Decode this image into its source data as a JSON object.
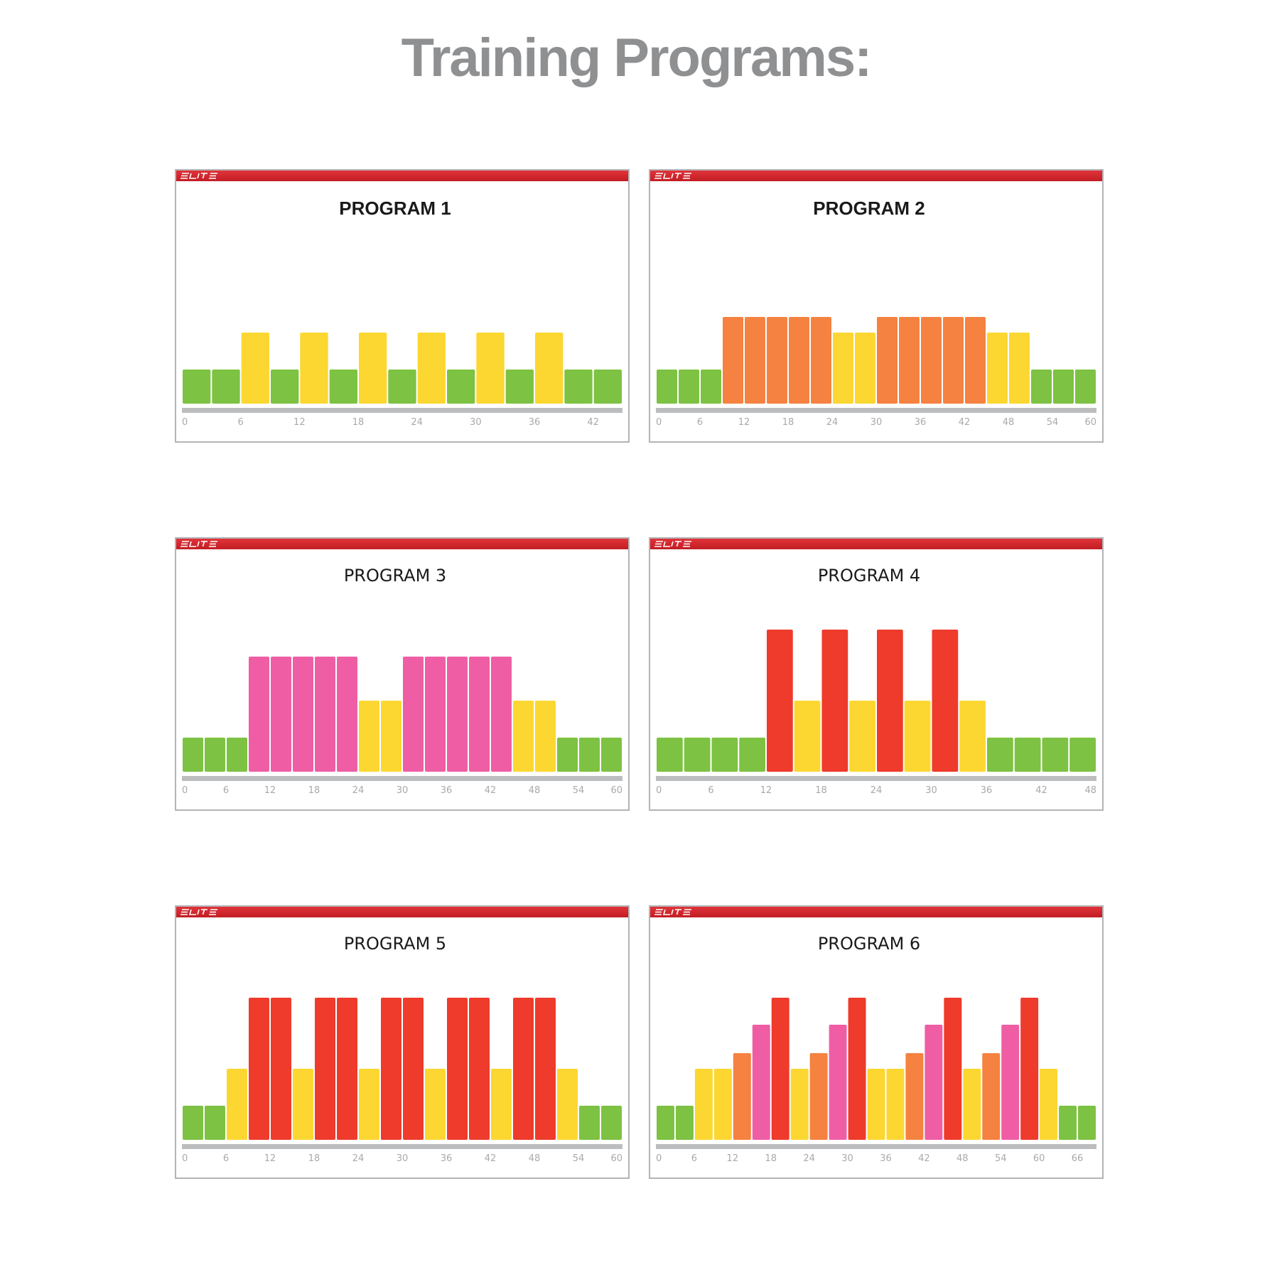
{
  "page": {
    "title": "Training Programs:"
  },
  "colors": {
    "green": "#7dc242",
    "yellow": "#fcd732",
    "orange": "#f58240",
    "pink": "#ef5ea4",
    "red": "#ee3b2b",
    "brand_red": "#d4262d",
    "track_gray": "#bcbdbf",
    "tick_gray": "#a8a9ab"
  },
  "brand": {
    "logo": "elite-logo-icon"
  },
  "chart_data": [
    {
      "type": "bar",
      "title": "PROGRAM 1",
      "xlim": [
        0,
        45
      ],
      "xticks": [
        0,
        6,
        12,
        18,
        24,
        30,
        36,
        42
      ],
      "bars": [
        {
          "start": 0,
          "end": 3,
          "level": 1,
          "zone": "green"
        },
        {
          "start": 3,
          "end": 6,
          "level": 1,
          "zone": "green"
        },
        {
          "start": 6,
          "end": 9,
          "level": 2,
          "zone": "yellow"
        },
        {
          "start": 9,
          "end": 12,
          "level": 1,
          "zone": "green"
        },
        {
          "start": 12,
          "end": 15,
          "level": 2,
          "zone": "yellow"
        },
        {
          "start": 15,
          "end": 18,
          "level": 1,
          "zone": "green"
        },
        {
          "start": 18,
          "end": 21,
          "level": 2,
          "zone": "yellow"
        },
        {
          "start": 21,
          "end": 24,
          "level": 1,
          "zone": "green"
        },
        {
          "start": 24,
          "end": 27,
          "level": 2,
          "zone": "yellow"
        },
        {
          "start": 27,
          "end": 30,
          "level": 1,
          "zone": "green"
        },
        {
          "start": 30,
          "end": 33,
          "level": 2,
          "zone": "yellow"
        },
        {
          "start": 33,
          "end": 36,
          "level": 1,
          "zone": "green"
        },
        {
          "start": 36,
          "end": 39,
          "level": 2,
          "zone": "yellow"
        },
        {
          "start": 39,
          "end": 42,
          "level": 1,
          "zone": "green"
        },
        {
          "start": 42,
          "end": 45,
          "level": 1,
          "zone": "green"
        }
      ]
    },
    {
      "type": "bar",
      "title": "PROGRAM 2",
      "xlim": [
        0,
        60
      ],
      "xticks": [
        0,
        6,
        12,
        18,
        24,
        30,
        36,
        42,
        48,
        54,
        60
      ],
      "bars": [
        {
          "start": 0,
          "end": 3,
          "level": 1,
          "zone": "green"
        },
        {
          "start": 3,
          "end": 6,
          "level": 1,
          "zone": "green"
        },
        {
          "start": 6,
          "end": 9,
          "level": 1,
          "zone": "green"
        },
        {
          "start": 9,
          "end": 12,
          "level": 3,
          "zone": "orange"
        },
        {
          "start": 12,
          "end": 15,
          "level": 3,
          "zone": "orange"
        },
        {
          "start": 15,
          "end": 18,
          "level": 3,
          "zone": "orange"
        },
        {
          "start": 18,
          "end": 21,
          "level": 3,
          "zone": "orange"
        },
        {
          "start": 21,
          "end": 24,
          "level": 3,
          "zone": "orange"
        },
        {
          "start": 24,
          "end": 27,
          "level": 2,
          "zone": "yellow"
        },
        {
          "start": 27,
          "end": 30,
          "level": 2,
          "zone": "yellow"
        },
        {
          "start": 30,
          "end": 33,
          "level": 3,
          "zone": "orange"
        },
        {
          "start": 33,
          "end": 36,
          "level": 3,
          "zone": "orange"
        },
        {
          "start": 36,
          "end": 39,
          "level": 3,
          "zone": "orange"
        },
        {
          "start": 39,
          "end": 42,
          "level": 3,
          "zone": "orange"
        },
        {
          "start": 42,
          "end": 45,
          "level": 3,
          "zone": "orange"
        },
        {
          "start": 45,
          "end": 48,
          "level": 2,
          "zone": "yellow"
        },
        {
          "start": 48,
          "end": 51,
          "level": 2,
          "zone": "yellow"
        },
        {
          "start": 51,
          "end": 54,
          "level": 1,
          "zone": "green"
        },
        {
          "start": 54,
          "end": 57,
          "level": 1,
          "zone": "green"
        },
        {
          "start": 57,
          "end": 60,
          "level": 1,
          "zone": "green"
        }
      ]
    },
    {
      "type": "bar",
      "title": "PROGRAM 3",
      "xlim": [
        0,
        60
      ],
      "xticks": [
        0,
        6,
        12,
        18,
        24,
        30,
        36,
        42,
        48,
        54,
        60
      ],
      "bars": [
        {
          "start": 0,
          "end": 3,
          "level": 1,
          "zone": "green"
        },
        {
          "start": 3,
          "end": 6,
          "level": 1,
          "zone": "green"
        },
        {
          "start": 6,
          "end": 9,
          "level": 1,
          "zone": "green"
        },
        {
          "start": 9,
          "end": 12,
          "level": 4,
          "zone": "pink"
        },
        {
          "start": 12,
          "end": 15,
          "level": 4,
          "zone": "pink"
        },
        {
          "start": 15,
          "end": 18,
          "level": 4,
          "zone": "pink"
        },
        {
          "start": 18,
          "end": 21,
          "level": 4,
          "zone": "pink"
        },
        {
          "start": 21,
          "end": 24,
          "level": 4,
          "zone": "pink"
        },
        {
          "start": 24,
          "end": 27,
          "level": 2,
          "zone": "yellow"
        },
        {
          "start": 27,
          "end": 30,
          "level": 2,
          "zone": "yellow"
        },
        {
          "start": 30,
          "end": 33,
          "level": 4,
          "zone": "pink"
        },
        {
          "start": 33,
          "end": 36,
          "level": 4,
          "zone": "pink"
        },
        {
          "start": 36,
          "end": 39,
          "level": 4,
          "zone": "pink"
        },
        {
          "start": 39,
          "end": 42,
          "level": 4,
          "zone": "pink"
        },
        {
          "start": 42,
          "end": 45,
          "level": 4,
          "zone": "pink"
        },
        {
          "start": 45,
          "end": 48,
          "level": 2,
          "zone": "yellow"
        },
        {
          "start": 48,
          "end": 51,
          "level": 2,
          "zone": "yellow"
        },
        {
          "start": 51,
          "end": 54,
          "level": 1,
          "zone": "green"
        },
        {
          "start": 54,
          "end": 57,
          "level": 1,
          "zone": "green"
        },
        {
          "start": 57,
          "end": 60,
          "level": 1,
          "zone": "green"
        }
      ]
    },
    {
      "type": "bar",
      "title": "PROGRAM 4",
      "xlim": [
        0,
        48
      ],
      "xticks": [
        0,
        6,
        12,
        18,
        24,
        30,
        36,
        42,
        48
      ],
      "bars": [
        {
          "start": 0,
          "end": 3,
          "level": 1,
          "zone": "green"
        },
        {
          "start": 3,
          "end": 6,
          "level": 1,
          "zone": "green"
        },
        {
          "start": 6,
          "end": 9,
          "level": 1,
          "zone": "green"
        },
        {
          "start": 9,
          "end": 12,
          "level": 1,
          "zone": "green"
        },
        {
          "start": 12,
          "end": 15,
          "level": 5,
          "zone": "red"
        },
        {
          "start": 15,
          "end": 18,
          "level": 2,
          "zone": "yellow"
        },
        {
          "start": 18,
          "end": 21,
          "level": 5,
          "zone": "red"
        },
        {
          "start": 21,
          "end": 24,
          "level": 2,
          "zone": "yellow"
        },
        {
          "start": 24,
          "end": 27,
          "level": 5,
          "zone": "red"
        },
        {
          "start": 27,
          "end": 30,
          "level": 2,
          "zone": "yellow"
        },
        {
          "start": 30,
          "end": 33,
          "level": 5,
          "zone": "red"
        },
        {
          "start": 33,
          "end": 36,
          "level": 2,
          "zone": "yellow"
        },
        {
          "start": 36,
          "end": 39,
          "level": 1,
          "zone": "green"
        },
        {
          "start": 39,
          "end": 42,
          "level": 1,
          "zone": "green"
        },
        {
          "start": 42,
          "end": 45,
          "level": 1,
          "zone": "green"
        },
        {
          "start": 45,
          "end": 48,
          "level": 1,
          "zone": "green"
        }
      ]
    },
    {
      "type": "bar",
      "title": "PROGRAM 5",
      "xlim": [
        0,
        60
      ],
      "xticks": [
        0,
        6,
        12,
        18,
        24,
        30,
        36,
        42,
        48,
        54,
        60
      ],
      "bars": [
        {
          "start": 0,
          "end": 3,
          "level": 1,
          "zone": "green"
        },
        {
          "start": 3,
          "end": 6,
          "level": 1,
          "zone": "green"
        },
        {
          "start": 6,
          "end": 9,
          "level": 2,
          "zone": "yellow"
        },
        {
          "start": 9,
          "end": 12,
          "level": 5,
          "zone": "red"
        },
        {
          "start": 12,
          "end": 15,
          "level": 5,
          "zone": "red"
        },
        {
          "start": 15,
          "end": 18,
          "level": 2,
          "zone": "yellow"
        },
        {
          "start": 18,
          "end": 21,
          "level": 5,
          "zone": "red"
        },
        {
          "start": 21,
          "end": 24,
          "level": 5,
          "zone": "red"
        },
        {
          "start": 24,
          "end": 27,
          "level": 2,
          "zone": "yellow"
        },
        {
          "start": 27,
          "end": 30,
          "level": 5,
          "zone": "red"
        },
        {
          "start": 30,
          "end": 33,
          "level": 5,
          "zone": "red"
        },
        {
          "start": 33,
          "end": 36,
          "level": 2,
          "zone": "yellow"
        },
        {
          "start": 36,
          "end": 39,
          "level": 5,
          "zone": "red"
        },
        {
          "start": 39,
          "end": 42,
          "level": 5,
          "zone": "red"
        },
        {
          "start": 42,
          "end": 45,
          "level": 2,
          "zone": "yellow"
        },
        {
          "start": 45,
          "end": 48,
          "level": 5,
          "zone": "red"
        },
        {
          "start": 48,
          "end": 51,
          "level": 5,
          "zone": "red"
        },
        {
          "start": 51,
          "end": 54,
          "level": 2,
          "zone": "yellow"
        },
        {
          "start": 54,
          "end": 57,
          "level": 1,
          "zone": "green"
        },
        {
          "start": 57,
          "end": 60,
          "level": 1,
          "zone": "green"
        }
      ]
    },
    {
      "type": "bar",
      "title": "PROGRAM 6",
      "xlim": [
        0,
        69
      ],
      "xticks": [
        0,
        6,
        12,
        18,
        24,
        30,
        36,
        42,
        48,
        54,
        60,
        66
      ],
      "bars": [
        {
          "start": 0,
          "end": 3,
          "level": 1,
          "zone": "green"
        },
        {
          "start": 3,
          "end": 6,
          "level": 1,
          "zone": "green"
        },
        {
          "start": 6,
          "end": 9,
          "level": 2,
          "zone": "yellow"
        },
        {
          "start": 9,
          "end": 12,
          "level": 2,
          "zone": "yellow"
        },
        {
          "start": 12,
          "end": 15,
          "level": 3,
          "zone": "orange"
        },
        {
          "start": 15,
          "end": 18,
          "level": 4,
          "zone": "pink"
        },
        {
          "start": 18,
          "end": 21,
          "level": 5,
          "zone": "red"
        },
        {
          "start": 21,
          "end": 24,
          "level": 2,
          "zone": "yellow"
        },
        {
          "start": 24,
          "end": 27,
          "level": 3,
          "zone": "orange"
        },
        {
          "start": 27,
          "end": 30,
          "level": 4,
          "zone": "pink"
        },
        {
          "start": 30,
          "end": 33,
          "level": 5,
          "zone": "red"
        },
        {
          "start": 33,
          "end": 36,
          "level": 2,
          "zone": "yellow"
        },
        {
          "start": 36,
          "end": 39,
          "level": 2,
          "zone": "yellow"
        },
        {
          "start": 39,
          "end": 42,
          "level": 3,
          "zone": "orange"
        },
        {
          "start": 42,
          "end": 45,
          "level": 4,
          "zone": "pink"
        },
        {
          "start": 45,
          "end": 48,
          "level": 5,
          "zone": "red"
        },
        {
          "start": 48,
          "end": 51,
          "level": 2,
          "zone": "yellow"
        },
        {
          "start": 51,
          "end": 54,
          "level": 3,
          "zone": "orange"
        },
        {
          "start": 54,
          "end": 57,
          "level": 4,
          "zone": "pink"
        },
        {
          "start": 57,
          "end": 60,
          "level": 5,
          "zone": "red"
        },
        {
          "start": 60,
          "end": 63,
          "level": 2,
          "zone": "yellow"
        },
        {
          "start": 63,
          "end": 66,
          "level": 1,
          "zone": "green"
        },
        {
          "start": 66,
          "end": 69,
          "level": 1,
          "zone": "green"
        }
      ]
    }
  ]
}
